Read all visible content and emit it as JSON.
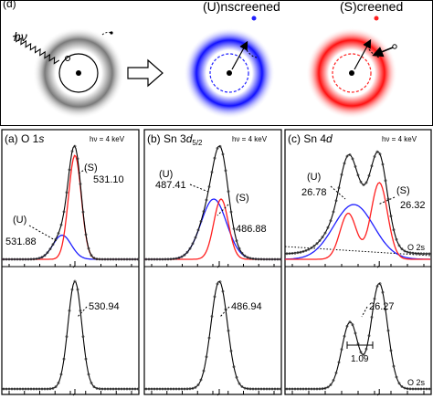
{
  "top": {
    "panel_label": "(d)",
    "photon_label": "hν",
    "unscreened_label": "(U)nscreened",
    "screened_label": "(S)creened",
    "colors": {
      "gray": "#8c8c8c",
      "blue": "#1f1fff",
      "red": "#ff1f1f"
    }
  },
  "panels": [
    {
      "title_prefix": "(a) O 1",
      "title_ital": "s",
      "title_sub": "",
      "hv": "hν = 4 keV",
      "upper_labels": {
        "S_tag": "(S)",
        "S_val": "531.10",
        "U_tag": "(U)",
        "U_val": "531.88"
      },
      "lower_labels": {
        "val": "530.94"
      }
    },
    {
      "title_prefix": "(b) Sn 3",
      "title_ital": "d",
      "title_sub": "5/2",
      "hv": "hν = 4 keV",
      "upper_labels": {
        "U_tag": "(U)",
        "U_val": "487.41",
        "S_tag": "(S)",
        "S_val": "486.88"
      },
      "lower_labels": {
        "val": "486.94"
      }
    },
    {
      "title_prefix": "(c) Sn 4",
      "title_ital": "d",
      "title_sub": "",
      "hv": "hν = 4 keV",
      "upper_labels": {
        "U_tag": "(U)",
        "U_val": "26.78",
        "S_tag": "(S)",
        "S_val": "26.32",
        "extra": "O 2s"
      },
      "lower_labels": {
        "val": "26.27",
        "scale": "1.09",
        "extra": "O 2s"
      }
    }
  ],
  "chart_data": {
    "type": "line",
    "note": "x axis = binding energy (decreasing to the right); values read from annotations only",
    "panels": [
      {
        "name": "O 1s",
        "upper_peaks": {
          "S": 531.1,
          "U": 531.88
        },
        "lower_peak": 530.94
      },
      {
        "name": "Sn 3d5/2",
        "upper_peaks": {
          "U": 487.41,
          "S": 486.88
        },
        "lower_peak": 486.94
      },
      {
        "name": "Sn 4d",
        "upper_peaks": {
          "U": 26.78,
          "S": 26.32
        },
        "lower_peak": 26.27,
        "scale_bar": 1.09
      }
    ]
  }
}
